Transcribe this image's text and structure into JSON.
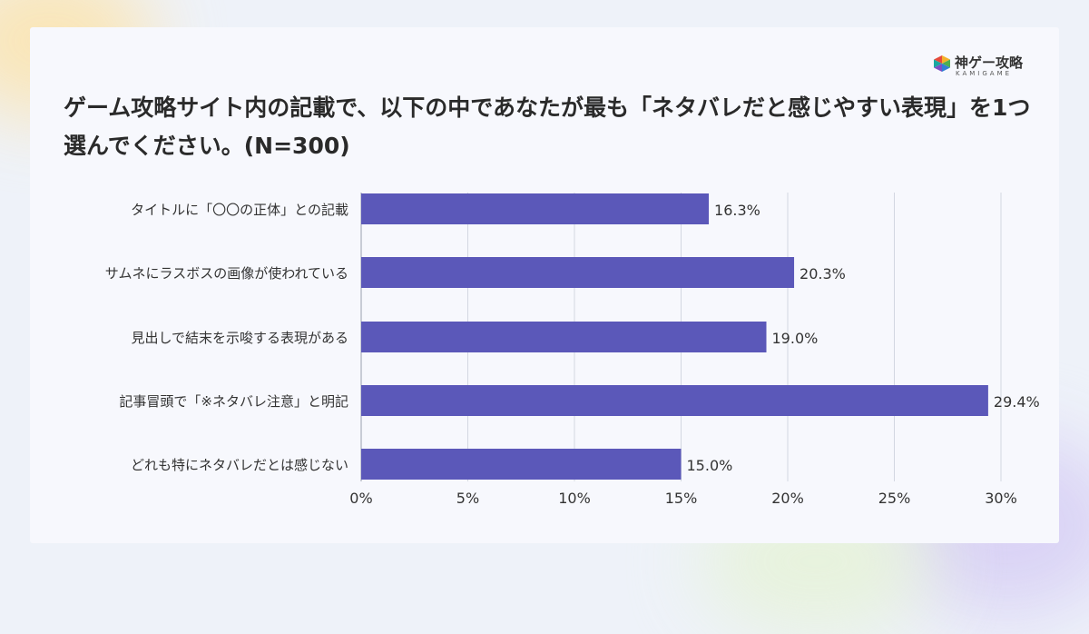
{
  "logo": {
    "name": "神ゲー攻略",
    "sub": "KAMIGAME"
  },
  "chart_data": {
    "type": "bar",
    "orientation": "horizontal",
    "title": "ゲーム攻略サイト内の記載で、以下の中であなたが最も「ネタバレだと感じやすい表現」を1つ選んでください。(N=300)",
    "categories": [
      "タイトルに「〇〇の正体」との記載",
      "サムネにラスボスの画像が使われている",
      "見出しで結末を示唆する表現がある",
      "記事冒頭で「※ネタバレ注意」と明記",
      "どれも特にネタバレだとは感じない"
    ],
    "values": [
      16.3,
      20.3,
      19.0,
      29.4,
      15.0
    ],
    "data_labels": [
      "16.3%",
      "20.3%",
      "19.0%",
      "29.4%",
      "15.0%"
    ],
    "xlim": [
      0,
      30
    ],
    "x_ticks": [
      "0%",
      "5%",
      "10%",
      "15%",
      "20%",
      "25%",
      "30%"
    ],
    "xlabel": "",
    "ylabel": "",
    "grid": true,
    "bar_color": "#5b58b9"
  }
}
